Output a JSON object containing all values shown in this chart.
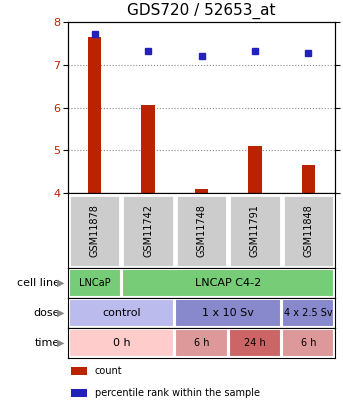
{
  "title": "GDS720 / 52653_at",
  "samples": [
    "GSM11878",
    "GSM11742",
    "GSM11748",
    "GSM11791",
    "GSM11848"
  ],
  "bar_values": [
    7.65,
    6.05,
    4.1,
    5.1,
    4.65
  ],
  "bar_bottom": 4.0,
  "percentile_values": [
    93,
    83,
    80,
    83,
    82
  ],
  "ylim_left": [
    4.0,
    8.0
  ],
  "ylim_right": [
    0,
    100
  ],
  "yticks_left": [
    4,
    5,
    6,
    7,
    8
  ],
  "yticks_right": [
    0,
    25,
    50,
    75,
    100
  ],
  "bar_color": "#bb2200",
  "dot_color": "#2222bb",
  "grid_color": "#888888",
  "cell_line_row": {
    "label": "cell line",
    "groups": [
      {
        "text": "LNCaP",
        "span": [
          0,
          1
        ],
        "color": "#77cc77"
      },
      {
        "text": "LNCAP C4-2",
        "span": [
          1,
          5
        ],
        "color": "#77cc77"
      }
    ]
  },
  "dose_row": {
    "label": "dose",
    "groups": [
      {
        "text": "control",
        "span": [
          0,
          2
        ],
        "color": "#bbbbee"
      },
      {
        "text": "1 x 10 Sv",
        "span": [
          2,
          4
        ],
        "color": "#8888cc"
      },
      {
        "text": "4 x 2.5 Sv",
        "span": [
          4,
          5
        ],
        "color": "#8888cc"
      }
    ]
  },
  "time_row": {
    "label": "time",
    "groups": [
      {
        "text": "0 h",
        "span": [
          0,
          2
        ],
        "color": "#ffcccc"
      },
      {
        "text": "6 h",
        "span": [
          2,
          3
        ],
        "color": "#dd9999"
      },
      {
        "text": "24 h",
        "span": [
          3,
          4
        ],
        "color": "#cc6666"
      },
      {
        "text": "6 h",
        "span": [
          4,
          5
        ],
        "color": "#dd9999"
      }
    ]
  },
  "legend_items": [
    {
      "color": "#bb2200",
      "label": "count"
    },
    {
      "color": "#2222bb",
      "label": "percentile rank within the sample"
    }
  ],
  "sample_col_color": "#cccccc",
  "title_fontsize": 11,
  "tick_fontsize": 8,
  "label_fontsize": 8,
  "sample_label_fontsize": 7,
  "row_label_fontsize": 8
}
